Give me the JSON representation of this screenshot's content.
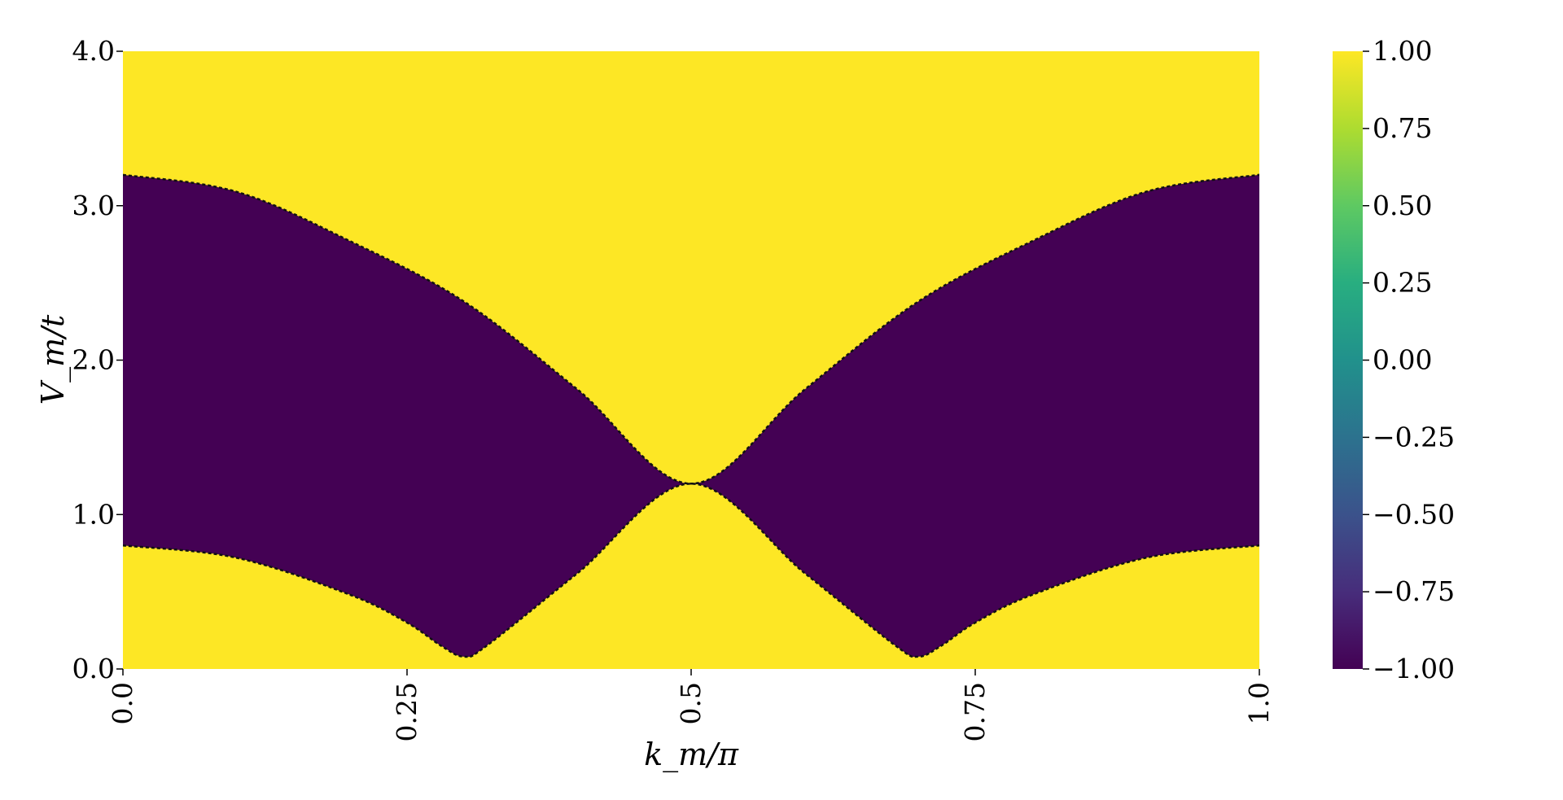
{
  "chart_data": {
    "type": "heatmap",
    "xlabel": "k_m/π",
    "ylabel": "V_m/t",
    "xlim": [
      0.0,
      1.0
    ],
    "ylim": [
      0.0,
      4.0
    ],
    "x_ticks": [
      {
        "value": 0.0,
        "label": "0.0"
      },
      {
        "value": 0.25,
        "label": "0.25"
      },
      {
        "value": 0.5,
        "label": "0.5"
      },
      {
        "value": 0.75,
        "label": "0.75"
      },
      {
        "value": 1.0,
        "label": "1.0"
      }
    ],
    "y_ticks": [
      {
        "value": 0.0,
        "label": "0.0"
      },
      {
        "value": 1.0,
        "label": "1.0"
      },
      {
        "value": 2.0,
        "label": "2.0"
      },
      {
        "value": 3.0,
        "label": "3.0"
      },
      {
        "value": 4.0,
        "label": "4.0"
      }
    ],
    "colormap": "viridis",
    "value_range": [
      -1.0,
      1.0
    ],
    "colorbar_ticks": [
      {
        "value": 1.0,
        "label": "1.00"
      },
      {
        "value": 0.75,
        "label": "0.75"
      },
      {
        "value": 0.5,
        "label": "0.50"
      },
      {
        "value": 0.25,
        "label": "0.25"
      },
      {
        "value": 0.0,
        "label": "0.00"
      },
      {
        "value": -0.25,
        "label": "−0.25"
      },
      {
        "value": -0.5,
        "label": "−0.50"
      },
      {
        "value": -0.75,
        "label": "−0.75"
      },
      {
        "value": -1.0,
        "label": "−1.00"
      }
    ],
    "regions": {
      "background_value": 1.0,
      "region_value": -1.0,
      "description_rule": "value is -1 between the lower and upper boundary curves, +1 elsewhere"
    },
    "upper_boundary": {
      "x": [
        0.0,
        0.1,
        0.2,
        0.3,
        0.4,
        0.5,
        0.6,
        0.7,
        0.8,
        0.9,
        1.0
      ],
      "y": [
        3.2,
        3.09,
        2.77,
        2.38,
        1.81,
        1.2,
        1.81,
        2.38,
        2.77,
        3.09,
        3.2
      ]
    },
    "lower_boundary": {
      "x": [
        0.0,
        0.1,
        0.2,
        0.25,
        0.28,
        0.3,
        0.32,
        0.4,
        0.5,
        0.6,
        0.68,
        0.7,
        0.72,
        0.75,
        0.8,
        0.9,
        1.0
      ],
      "y": [
        0.8,
        0.72,
        0.48,
        0.3,
        0.15,
        0.08,
        0.15,
        0.62,
        1.2,
        0.62,
        0.15,
        0.08,
        0.15,
        0.3,
        0.48,
        0.72,
        0.8
      ]
    },
    "colors": {
      "positive": "#fde725",
      "negative": "#440154"
    }
  }
}
